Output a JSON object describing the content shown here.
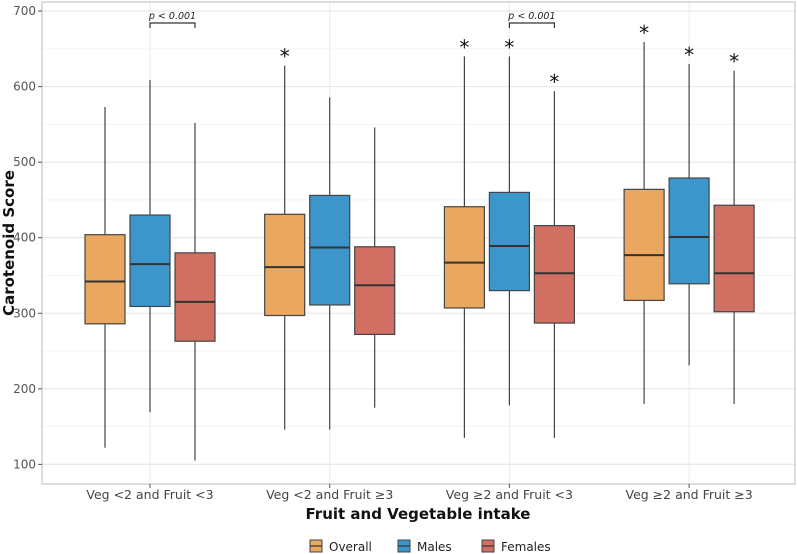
{
  "chart_data": {
    "type": "boxplot",
    "title": "",
    "xlabel": "Fruit and Vegetable intake",
    "ylabel": "Carotenoid Score",
    "ylim": [
      74,
      712
    ],
    "yticks": [
      100,
      200,
      300,
      400,
      500,
      600,
      700
    ],
    "ytick_labels": [
      "100",
      "200",
      "300",
      "400",
      "500",
      "600",
      "700"
    ],
    "grid": true,
    "legend_position": "bottom",
    "categories": [
      "Veg <2 and Fruit <3",
      "Veg <2 and Fruit ≥3",
      "Veg ≥2 and Fruit <3",
      "Veg ≥2 and Fruit ≥3"
    ],
    "series": [
      {
        "name": "Overall",
        "color": "#E9A75F",
        "boxes": [
          {
            "min": 122,
            "q1": 286,
            "median": 342,
            "q3": 404,
            "max": 573,
            "star": false
          },
          {
            "min": 146,
            "q1": 297,
            "median": 361,
            "q3": 431,
            "max": 628,
            "star": true
          },
          {
            "min": 135,
            "q1": 307,
            "median": 367,
            "q3": 441,
            "max": 640,
            "star": true
          },
          {
            "min": 180,
            "q1": 317,
            "median": 377,
            "q3": 464,
            "max": 659,
            "star": true
          }
        ]
      },
      {
        "name": "Males",
        "color": "#3D96CB",
        "boxes": [
          {
            "min": 169,
            "q1": 309,
            "median": 365,
            "q3": 430,
            "max": 609,
            "star": false
          },
          {
            "min": 146,
            "q1": 311,
            "median": 387,
            "q3": 456,
            "max": 586,
            "star": false
          },
          {
            "min": 178,
            "q1": 330,
            "median": 389,
            "q3": 460,
            "max": 640,
            "star": true
          },
          {
            "min": 231,
            "q1": 339,
            "median": 401,
            "q3": 479,
            "max": 630,
            "star": true
          }
        ]
      },
      {
        "name": "Females",
        "color": "#D26F63",
        "boxes": [
          {
            "min": 105,
            "q1": 263,
            "median": 315,
            "q3": 380,
            "max": 552,
            "star": false
          },
          {
            "min": 175,
            "q1": 272,
            "median": 337,
            "q3": 388,
            "max": 546,
            "star": false
          },
          {
            "min": 135,
            "q1": 287,
            "median": 353,
            "q3": 416,
            "max": 594,
            "star": true
          },
          {
            "min": 180,
            "q1": 302,
            "median": 353,
            "q3": 443,
            "max": 621,
            "star": true
          }
        ]
      }
    ],
    "annotations": [
      {
        "text": "p < 0.001",
        "category_index": 0,
        "between": [
          "Males",
          "Females"
        ]
      },
      {
        "text": "p < 0.001",
        "category_index": 2,
        "between": [
          "Males",
          "Females"
        ]
      }
    ],
    "star_symbol": "*"
  }
}
